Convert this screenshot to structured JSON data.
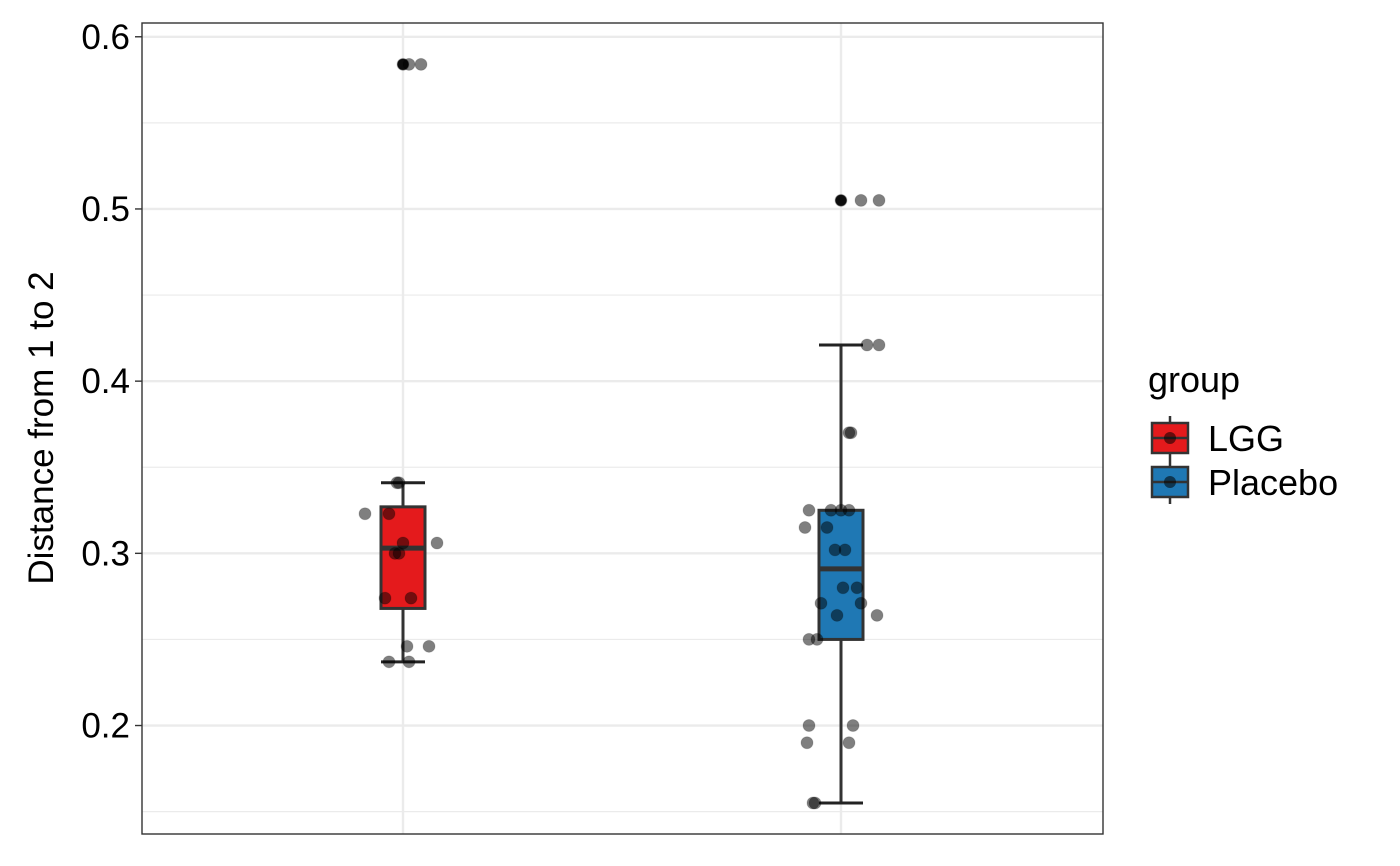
{
  "chart_data": {
    "type": "box",
    "ylabel": "Distance from 1 to 2",
    "xlabel": "",
    "ylim": [
      0.137,
      0.608
    ],
    "yticks": [
      0.2,
      0.3,
      0.4,
      0.5,
      0.6
    ],
    "ytick_labels": [
      "0.2",
      "0.3",
      "0.4",
      "0.5",
      "0.6"
    ],
    "grid": true,
    "legend": {
      "title": "group",
      "position": "right",
      "entries": [
        {
          "label": "LGG",
          "color": "#E41A1C"
        },
        {
          "label": "Placebo",
          "color": "#1F78B4"
        }
      ]
    },
    "groups": [
      {
        "name": "LGG",
        "color": "#E41A1C",
        "box": {
          "whisker_low": 0.237,
          "q1": 0.268,
          "median": 0.303,
          "q3": 0.327,
          "whisker_high": 0.341
        },
        "outliers": [
          0.584
        ],
        "points": [
          {
            "dx": 0.0,
            "y": 0.584
          },
          {
            "dx": 0.03,
            "y": 0.584
          },
          {
            "dx": 0.09,
            "y": 0.584
          },
          {
            "dx": -0.03,
            "y": 0.341
          },
          {
            "dx": -0.02,
            "y": 0.341
          },
          {
            "dx": -0.19,
            "y": 0.323
          },
          {
            "dx": -0.07,
            "y": 0.323
          },
          {
            "dx": 0.17,
            "y": 0.306
          },
          {
            "dx": 0.0,
            "y": 0.306
          },
          {
            "dx": -0.04,
            "y": 0.3
          },
          {
            "dx": -0.02,
            "y": 0.3
          },
          {
            "dx": -0.09,
            "y": 0.274
          },
          {
            "dx": 0.04,
            "y": 0.274
          },
          {
            "dx": 0.02,
            "y": 0.246
          },
          {
            "dx": 0.13,
            "y": 0.246
          },
          {
            "dx": -0.07,
            "y": 0.237
          },
          {
            "dx": 0.03,
            "y": 0.237
          }
        ]
      },
      {
        "name": "Placebo",
        "color": "#1F78B4",
        "box": {
          "whisker_low": 0.155,
          "q1": 0.25,
          "median": 0.291,
          "q3": 0.325,
          "whisker_high": 0.421
        },
        "outliers": [
          0.505
        ],
        "points": [
          {
            "dx": 0.0,
            "y": 0.505
          },
          {
            "dx": 0.1,
            "y": 0.505
          },
          {
            "dx": 0.19,
            "y": 0.505
          },
          {
            "dx": 0.13,
            "y": 0.421
          },
          {
            "dx": 0.19,
            "y": 0.421
          },
          {
            "dx": 0.04,
            "y": 0.37
          },
          {
            "dx": 0.05,
            "y": 0.37
          },
          {
            "dx": -0.16,
            "y": 0.325
          },
          {
            "dx": -0.05,
            "y": 0.325
          },
          {
            "dx": 0.0,
            "y": 0.325
          },
          {
            "dx": 0.04,
            "y": 0.325
          },
          {
            "dx": -0.18,
            "y": 0.315
          },
          {
            "dx": -0.07,
            "y": 0.315
          },
          {
            "dx": -0.03,
            "y": 0.302
          },
          {
            "dx": 0.02,
            "y": 0.302
          },
          {
            "dx": 0.01,
            "y": 0.28
          },
          {
            "dx": 0.08,
            "y": 0.28
          },
          {
            "dx": -0.1,
            "y": 0.271
          },
          {
            "dx": 0.1,
            "y": 0.271
          },
          {
            "dx": -0.02,
            "y": 0.264
          },
          {
            "dx": 0.18,
            "y": 0.264
          },
          {
            "dx": -0.16,
            "y": 0.25
          },
          {
            "dx": -0.12,
            "y": 0.25
          },
          {
            "dx": -0.16,
            "y": 0.2
          },
          {
            "dx": 0.06,
            "y": 0.2
          },
          {
            "dx": -0.17,
            "y": 0.19
          },
          {
            "dx": 0.04,
            "y": 0.19
          },
          {
            "dx": -0.14,
            "y": 0.155
          },
          {
            "dx": -0.13,
            "y": 0.155
          }
        ]
      }
    ]
  }
}
